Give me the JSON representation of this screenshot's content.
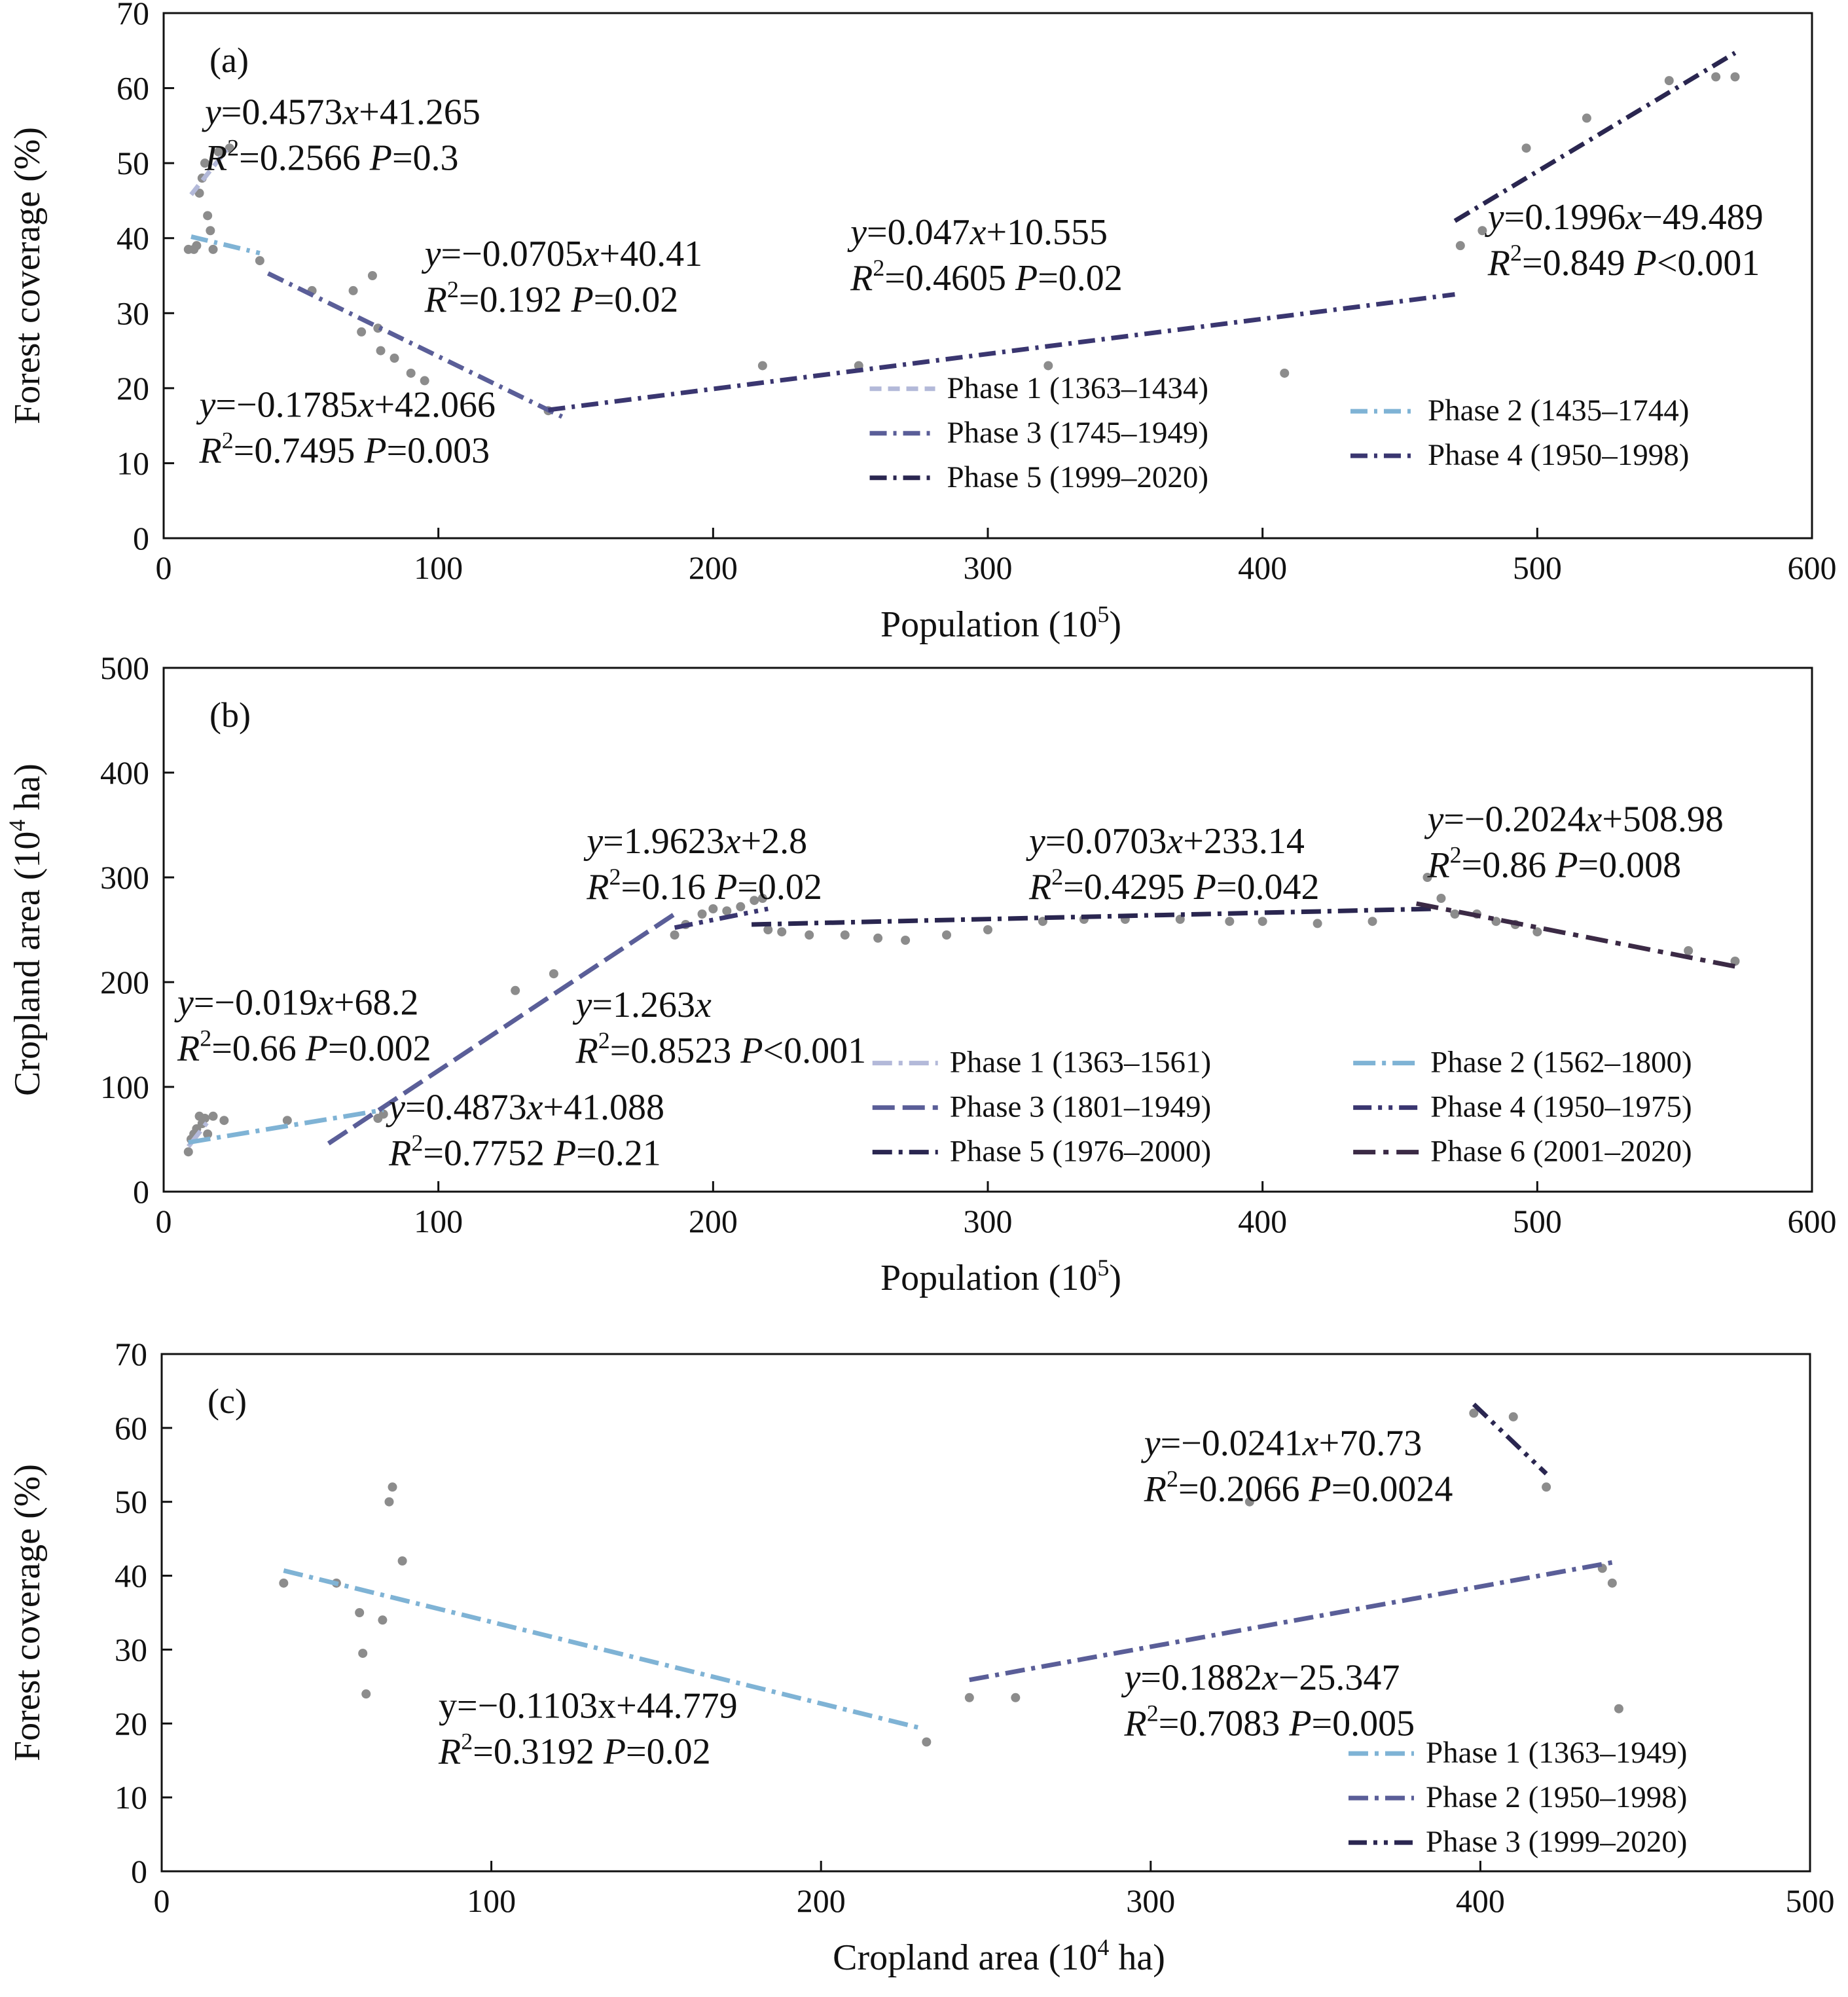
{
  "colors": {
    "points": "#8c8c8c",
    "phases": [
      "#b3b9d9",
      "#7fb3d5",
      "#5a5e98",
      "#3a3670",
      "#2a2650",
      "#3b2a45"
    ]
  },
  "chart_data": [
    {
      "type": "scatter",
      "panel_label": "(a)",
      "xlabel": "Population (10",
      "xlabel_sup": "5",
      "xlabel_tail": ")",
      "ylabel": "Forest coverage (%)",
      "xlim": [
        0,
        600
      ],
      "ylim": [
        0,
        70
      ],
      "xticks": [
        0,
        100,
        200,
        300,
        400,
        500,
        600
      ],
      "yticks": [
        0,
        10,
        20,
        30,
        40,
        50,
        60,
        70
      ],
      "xtick_labels": [
        "0",
        "100",
        "200",
        "300",
        "400",
        "500",
        "600"
      ],
      "ytick_labels": [
        "0",
        "10",
        "20",
        "30",
        "40",
        "50",
        "60",
        "70"
      ],
      "points": [
        [
          9,
          38.5
        ],
        [
          11,
          38.5
        ],
        [
          12,
          39
        ],
        [
          13,
          46
        ],
        [
          14,
          48
        ],
        [
          15,
          50
        ],
        [
          16,
          43
        ],
        [
          17,
          41
        ],
        [
          18,
          38.5
        ],
        [
          20,
          51.5
        ],
        [
          24,
          52
        ],
        [
          35,
          37
        ],
        [
          54,
          33
        ],
        [
          69,
          33
        ],
        [
          72,
          27.5
        ],
        [
          76,
          35
        ],
        [
          78,
          28
        ],
        [
          79,
          25
        ],
        [
          84,
          24
        ],
        [
          90,
          22
        ],
        [
          95,
          21
        ],
        [
          140,
          17
        ],
        [
          218,
          23
        ],
        [
          253,
          23
        ],
        [
          322,
          23
        ],
        [
          408,
          22
        ],
        [
          472,
          39
        ],
        [
          480,
          41
        ],
        [
          496,
          52
        ],
        [
          518,
          56
        ],
        [
          548,
          61
        ],
        [
          565,
          61.5
        ],
        [
          572,
          61.5
        ]
      ],
      "fits": [
        {
          "name": "Phase 1 (1363–1434)",
          "x": [
            10,
            23
          ],
          "y": [
            45.8,
            51.8
          ],
          "color_index": 0,
          "dash": "18 10"
        },
        {
          "name": "Phase 2 (1435–1744)",
          "x": [
            10,
            35
          ],
          "y": [
            40.2,
            38.0
          ],
          "color_index": 1,
          "dash": "26 10 5 10"
        },
        {
          "name": "Phase 3 (1745–1949)",
          "x": [
            38,
            145
          ],
          "y": [
            35.3,
            16.2
          ],
          "color_index": 2,
          "dash": "26 10 5 10"
        },
        {
          "name": "Phase 4 (1950–1998)",
          "x": [
            140,
            470
          ],
          "y": [
            17.1,
            32.5
          ],
          "color_index": 3,
          "dash": "26 10 5 10"
        },
        {
          "name": "Phase 5 (1999–2020)",
          "x": [
            470,
            572
          ],
          "y": [
            42.3,
            64.7
          ],
          "color_index": 4,
          "dash": "26 10 5 10"
        }
      ],
      "equations": [
        {
          "pre": "y",
          "mid": "=0.4573",
          "var": "x",
          "post": "+41.265",
          "r2": "=0.2566 ",
          "p": "=0.3",
          "at": [
            15,
            55.2
          ]
        },
        {
          "pre": "y",
          "mid": "=−0.0705",
          "var": "x",
          "post": "+40.41",
          "r2": "=0.192 ",
          "p": "=0.02",
          "at": [
            95,
            36.3
          ]
        },
        {
          "pre": "y",
          "mid": "=−0.1785",
          "var": "x",
          "post": "+42.066",
          "r2": "=0.7495 ",
          "p": "=0.003",
          "at": [
            13,
            16.2
          ]
        },
        {
          "pre": "y",
          "mid": "=0.047",
          "var": "x",
          "post": "+10.555",
          "r2": "=0.4605 ",
          "p": "=0.02",
          "at": [
            250,
            39.2
          ]
        },
        {
          "pre": "y",
          "mid": "=0.1996",
          "var": "x",
          "post": "−49.489",
          "r2": "=0.849 ",
          "p": "<0.001",
          "at": [
            482,
            41.2
          ]
        }
      ],
      "legend": {
        "placement": "bottom-right",
        "columns": [
          {
            "at": [
              257,
              18.7
            ],
            "items": [
              0,
              2,
              4
            ]
          },
          {
            "at": [
              432,
              15.7
            ],
            "items": [
              1,
              3
            ]
          }
        ]
      }
    },
    {
      "type": "scatter",
      "panel_label": "(b)",
      "xlabel": "Population (10",
      "xlabel_sup": "5",
      "xlabel_tail": ")",
      "ylabel": "Cropland area (10",
      "ylabel_sup": "4",
      "ylabel_tail": " ha)",
      "xlim": [
        0,
        600
      ],
      "ylim": [
        0,
        500
      ],
      "xticks": [
        0,
        100,
        200,
        300,
        400,
        500,
        600
      ],
      "yticks": [
        0,
        100,
        200,
        300,
        400,
        500
      ],
      "xtick_labels": [
        "0",
        "100",
        "200",
        "300",
        "400",
        "500",
        "600"
      ],
      "ytick_labels": [
        "0",
        "100",
        "200",
        "300",
        "400",
        "500"
      ],
      "points": [
        [
          9,
          38
        ],
        [
          10,
          50
        ],
        [
          11,
          55
        ],
        [
          12,
          60
        ],
        [
          13,
          72
        ],
        [
          14,
          65
        ],
        [
          15,
          70
        ],
        [
          16,
          55
        ],
        [
          18,
          72
        ],
        [
          22,
          68
        ],
        [
          45,
          68
        ],
        [
          78,
          70
        ],
        [
          80,
          74
        ],
        [
          128,
          192
        ],
        [
          142,
          208
        ],
        [
          186,
          245
        ],
        [
          190,
          255
        ],
        [
          196,
          265
        ],
        [
          200,
          270
        ],
        [
          205,
          268
        ],
        [
          210,
          272
        ],
        [
          215,
          278
        ],
        [
          218,
          280
        ],
        [
          220,
          250
        ],
        [
          225,
          248
        ],
        [
          235,
          245
        ],
        [
          248,
          245
        ],
        [
          260,
          242
        ],
        [
          270,
          240
        ],
        [
          285,
          245
        ],
        [
          300,
          250
        ],
        [
          320,
          258
        ],
        [
          335,
          260
        ],
        [
          350,
          260
        ],
        [
          370,
          260
        ],
        [
          388,
          258
        ],
        [
          400,
          258
        ],
        [
          420,
          256
        ],
        [
          440,
          258
        ],
        [
          460,
          300
        ],
        [
          465,
          280
        ],
        [
          470,
          265
        ],
        [
          478,
          265
        ],
        [
          485,
          258
        ],
        [
          492,
          255
        ],
        [
          500,
          248
        ],
        [
          555,
          230
        ],
        [
          572,
          220
        ]
      ],
      "fits": [
        {
          "name": "Phase 1 (1363–1561)",
          "x": [
            9,
            17
          ],
          "y": [
            43,
            70
          ],
          "color_index": 0,
          "dash": "30 10 6 10"
        },
        {
          "name": "Phase 2 (1562–1800)",
          "x": [
            9,
            80
          ],
          "y": [
            47,
            78
          ],
          "color_index": 1,
          "dash": "34 10 6 10"
        },
        {
          "name": "Phase 3 (1801–1949)",
          "x": [
            60,
            186
          ],
          "y": [
            46,
            265
          ],
          "color_index": 2,
          "dash": "34 12"
        },
        {
          "name": "Phase 4 (1950–1975)",
          "x": [
            186,
            220
          ],
          "y": [
            252,
            270
          ],
          "color_index": 3,
          "dash": "28 10 6 10 6 10"
        },
        {
          "name": "Phase 5 (1976–2000)",
          "x": [
            214,
            462
          ],
          "y": [
            255,
            270
          ],
          "color_index": 4,
          "dash": "30 10 6 10"
        },
        {
          "name": "Phase 6 (2001–2020)",
          "x": [
            456,
            572
          ],
          "y": [
            275,
            215
          ],
          "color_index": 5,
          "dash": "34 12 8 12"
        }
      ],
      "equations": [
        {
          "pre": "y",
          "mid": "=−0.019",
          "var": "x",
          "post": "+68.2",
          "r2": "=0.66 ",
          "p": "=0.002",
          "at": [
            5,
            169
          ]
        },
        {
          "pre": "y",
          "mid": "=0.4873",
          "var": "x",
          "post": "+41.088",
          "r2": "=0.7752 ",
          "p": "=0.21",
          "at": [
            82,
            69
          ]
        },
        {
          "pre": "y",
          "mid": "=1.9623",
          "var": "x",
          "post": "+2.8",
          "r2": "=0.16 ",
          "p": "=0.02",
          "at": [
            154,
            323
          ]
        },
        {
          "pre": "y",
          "mid": "=1.263",
          "var": "x",
          "post": "",
          "r2": "=0.8523 ",
          "p": "<0.001",
          "at": [
            150,
            167
          ]
        },
        {
          "pre": "y",
          "mid": "=0.0703",
          "var": "x",
          "post": "+233.14",
          "r2": "=0.4295 ",
          "p": "=0.042",
          "at": [
            315,
            323
          ]
        },
        {
          "pre": "y",
          "mid": "=−0.2024",
          "var": "x",
          "post": "+508.98",
          "r2": "=0.86 ",
          "p": "=0.008",
          "at": [
            460,
            344
          ]
        }
      ],
      "legend": {
        "placement": "bottom-right",
        "columns": [
          {
            "at": [
              258,
              114
            ],
            "items": [
              0,
              2,
              4
            ]
          },
          {
            "at": [
              433,
              114
            ],
            "items": [
              1,
              3,
              5
            ]
          }
        ]
      }
    },
    {
      "type": "scatter",
      "panel_label": "(c)",
      "xlabel": "Cropland area (10",
      "xlabel_sup": "4",
      "xlabel_tail": " ha)",
      "ylabel": "Forest coverage (%)",
      "xlim": [
        0,
        500
      ],
      "ylim": [
        0,
        70
      ],
      "xticks": [
        0,
        100,
        200,
        300,
        400,
        500
      ],
      "yticks": [
        0,
        10,
        20,
        30,
        40,
        50,
        60,
        70
      ],
      "xtick_labels": [
        "0",
        "100",
        "200",
        "300",
        "400",
        "500"
      ],
      "ytick_labels": [
        "0",
        "10",
        "20",
        "30",
        "40",
        "50",
        "60",
        "70"
      ],
      "points": [
        [
          37,
          39
        ],
        [
          53,
          39
        ],
        [
          60,
          35
        ],
        [
          61,
          29.5
        ],
        [
          62,
          24
        ],
        [
          67,
          34
        ],
        [
          69,
          50
        ],
        [
          70,
          52
        ],
        [
          73,
          42
        ],
        [
          232,
          17.5
        ],
        [
          245,
          23.5
        ],
        [
          259,
          23.5
        ],
        [
          330,
          50
        ],
        [
          398,
          62
        ],
        [
          410,
          61.5
        ],
        [
          420,
          52
        ],
        [
          437,
          41
        ],
        [
          440,
          39
        ],
        [
          442,
          22
        ]
      ],
      "fits": [
        {
          "name": "Phase 1 (1363–1949)",
          "x": [
            37,
            230
          ],
          "y": [
            40.7,
            19.4
          ],
          "color_index": 1,
          "dash": "30 10 6 10"
        },
        {
          "name": "Phase 2 (1950–1998)",
          "x": [
            245,
            440
          ],
          "y": [
            25.9,
            41.8
          ],
          "color_index": 2,
          "dash": "30 10 6 10"
        },
        {
          "name": "Phase 3 (1999–2020)",
          "x": [
            398,
            420
          ],
          "y": [
            63.2,
            53.8
          ],
          "color_index": 4,
          "dash": "28 10 6 10 6 10"
        }
      ],
      "equations": [
        {
          "pre": "y",
          "mid": "=−0.0241",
          "var": "x",
          "post": "+70.73",
          "r2": "=0.2066 ",
          "p": "=0.0024",
          "at": [
            298,
            56.3
          ]
        },
        {
          "pre": "y",
          "mid": "=0.1882",
          "var": "x",
          "post": "−25.347",
          "r2": "=0.7083  ",
          "p": "=0.005",
          "at": [
            292,
            24.6
          ]
        },
        {
          "plain": "y=−0.1103x+44.779",
          "r2": "=0.3192 ",
          "p": "=0.02",
          "at": [
            84,
            20.8
          ]
        }
      ],
      "legend": {
        "placement": "bottom-right",
        "columns": [
          {
            "at": [
              360,
              14.7
            ],
            "items": [
              0,
              1,
              2
            ]
          }
        ]
      }
    }
  ]
}
